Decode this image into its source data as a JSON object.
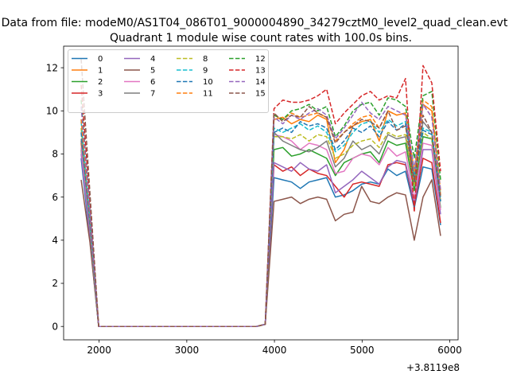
{
  "chart_data": {
    "type": "line",
    "suptitle": "Data from file: modeM0/AS1T04_086T01_9000004890_34279cztM0_level2_quad_clean.evt",
    "title": "Quadrant 1 module wise count rates with 100.0s bins.",
    "xlabel": "",
    "ylabel": "",
    "x_offset_label": "+3.8119e8",
    "xlim": [
      1595,
      6095
    ],
    "ylim": [
      -0.62,
      13.0
    ],
    "x_ticks": [
      2000,
      3000,
      4000,
      5000,
      6000
    ],
    "x_tick_labels": [
      "2000",
      "3000",
      "4000",
      "5000",
      "6000"
    ],
    "y_ticks": [
      0,
      2,
      4,
      6,
      8,
      10,
      12
    ],
    "y_tick_labels": [
      "0",
      "2",
      "4",
      "6",
      "8",
      "10",
      "12"
    ],
    "grid": false,
    "legend": {
      "placement": "top-left",
      "columns": 4
    },
    "x": [
      1795,
      1895,
      1995,
      2095,
      2195,
      2295,
      2395,
      2495,
      2595,
      2695,
      2795,
      2895,
      2995,
      3095,
      3195,
      3295,
      3395,
      3495,
      3595,
      3695,
      3795,
      3895,
      3995,
      4095,
      4195,
      4295,
      4395,
      4495,
      4595,
      4695,
      4795,
      4895,
      4995,
      5095,
      5195,
      5295,
      5395,
      5495,
      5595,
      5695,
      5795,
      5895
    ],
    "series": [
      {
        "name": "0",
        "color": "#1f77b4",
        "dash": "solid",
        "values": [
          7.8,
          4.0,
          0,
          0,
          0,
          0,
          0,
          0,
          0,
          0,
          0,
          0,
          0,
          0,
          0,
          0,
          0,
          0,
          0,
          0,
          0,
          0.1,
          6.9,
          6.8,
          6.7,
          6.4,
          6.7,
          6.8,
          6.9,
          6.0,
          6.1,
          6.3,
          6.6,
          6.7,
          6.6,
          7.3,
          7.0,
          7.2,
          5.5,
          7.4,
          7.3,
          4.7
        ]
      },
      {
        "name": "1",
        "color": "#ff7f0e",
        "dash": "solid",
        "values": [
          8.5,
          4.6,
          0,
          0,
          0,
          0,
          0,
          0,
          0,
          0,
          0,
          0,
          0,
          0,
          0,
          0,
          0,
          0,
          0,
          0,
          0,
          0.1,
          9.6,
          9.7,
          9.4,
          9.6,
          9.5,
          9.8,
          9.6,
          7.6,
          8.2,
          9.3,
          9.5,
          9.6,
          8.6,
          10.0,
          9.8,
          9.9,
          6.9,
          10.3,
          10.0,
          6.1
        ]
      },
      {
        "name": "2",
        "color": "#2ca02c",
        "dash": "solid",
        "values": [
          8.2,
          4.3,
          0,
          0,
          0,
          0,
          0,
          0,
          0,
          0,
          0,
          0,
          0,
          0,
          0,
          0,
          0,
          0,
          0,
          0,
          0,
          0.1,
          8.2,
          8.3,
          7.9,
          8.0,
          8.2,
          8.0,
          7.8,
          7.0,
          7.6,
          7.8,
          8.0,
          8.1,
          7.6,
          8.6,
          8.4,
          8.5,
          6.3,
          8.8,
          8.7,
          5.5
        ]
      },
      {
        "name": "3",
        "color": "#d62728",
        "dash": "solid",
        "values": [
          8.6,
          4.4,
          0,
          0,
          0,
          0,
          0,
          0,
          0,
          0,
          0,
          0,
          0,
          0,
          0,
          0,
          0,
          0,
          0,
          0,
          0,
          0.1,
          7.5,
          7.2,
          7.4,
          7.0,
          7.3,
          7.1,
          7.0,
          6.5,
          6.0,
          6.6,
          6.7,
          6.6,
          6.5,
          7.5,
          7.6,
          7.5,
          5.6,
          7.8,
          7.6,
          4.8
        ]
      },
      {
        "name": "4",
        "color": "#9467bd",
        "dash": "solid",
        "values": [
          8.0,
          4.2,
          0,
          0,
          0,
          0,
          0,
          0,
          0,
          0,
          0,
          0,
          0,
          0,
          0,
          0,
          0,
          0,
          0,
          0,
          0,
          0.1,
          7.6,
          7.4,
          7.2,
          7.6,
          7.3,
          7.2,
          7.5,
          6.2,
          6.5,
          6.8,
          7.2,
          6.9,
          6.6,
          7.4,
          7.7,
          7.6,
          5.7,
          8.2,
          8.2,
          5.2
        ]
      },
      {
        "name": "5",
        "color": "#8c564b",
        "dash": "solid",
        "values": [
          6.8,
          3.9,
          0,
          0,
          0,
          0,
          0,
          0,
          0,
          0,
          0,
          0,
          0,
          0,
          0,
          0,
          0,
          0,
          0,
          0,
          0,
          0.1,
          5.8,
          5.9,
          6.0,
          5.7,
          5.9,
          6.0,
          5.9,
          4.9,
          5.2,
          5.3,
          6.5,
          5.8,
          5.7,
          6.0,
          6.2,
          6.1,
          4.0,
          6.0,
          6.8,
          4.2
        ]
      },
      {
        "name": "6",
        "color": "#e377c2",
        "dash": "solid",
        "values": [
          8.3,
          4.5,
          0,
          0,
          0,
          0,
          0,
          0,
          0,
          0,
          0,
          0,
          0,
          0,
          0,
          0,
          0,
          0,
          0,
          0,
          0,
          0.1,
          8.9,
          8.8,
          8.6,
          8.2,
          8.5,
          8.4,
          8.2,
          7.1,
          7.2,
          7.8,
          8.0,
          7.9,
          7.5,
          8.3,
          7.9,
          8.1,
          5.9,
          8.5,
          8.4,
          5.4
        ]
      },
      {
        "name": "7",
        "color": "#7f7f7f",
        "dash": "solid",
        "values": [
          8.7,
          4.6,
          0,
          0,
          0,
          0,
          0,
          0,
          0,
          0,
          0,
          0,
          0,
          0,
          0,
          0,
          0,
          0,
          0,
          0,
          0,
          0.1,
          9.0,
          8.6,
          8.4,
          8.2,
          8.1,
          8.3,
          8.6,
          7.4,
          7.8,
          8.6,
          8.2,
          8.4,
          8.0,
          8.9,
          8.7,
          8.8,
          6.6,
          9.5,
          9.0,
          5.8
        ]
      },
      {
        "name": "8",
        "color": "#bcbd22",
        "dash": "dashed",
        "values": [
          9.2,
          4.9,
          0,
          0,
          0,
          0,
          0,
          0,
          0,
          0,
          0,
          0,
          0,
          0,
          0,
          0,
          0,
          0,
          0,
          0,
          0,
          0.1,
          8.8,
          8.8,
          8.7,
          8.9,
          8.6,
          8.9,
          8.8,
          7.8,
          8.0,
          8.4,
          8.6,
          8.7,
          8.3,
          9.0,
          8.8,
          8.9,
          6.6,
          9.0,
          8.7,
          5.9
        ]
      },
      {
        "name": "9",
        "color": "#17becf",
        "dash": "dashed",
        "values": [
          9.5,
          5.0,
          0,
          0,
          0,
          0,
          0,
          0,
          0,
          0,
          0,
          0,
          0,
          0,
          0,
          0,
          0,
          0,
          0,
          0,
          0,
          0.1,
          9.2,
          9.0,
          9.2,
          9.4,
          9.1,
          9.3,
          9.0,
          8.1,
          8.4,
          9.0,
          9.4,
          9.5,
          9.0,
          9.6,
          9.3,
          9.5,
          7.0,
          9.2,
          9.0,
          6.0
        ]
      },
      {
        "name": "10",
        "color": "#1f77b4",
        "dash": "dashed",
        "values": [
          9.0,
          4.8,
          0,
          0,
          0,
          0,
          0,
          0,
          0,
          0,
          0,
          0,
          0,
          0,
          0,
          0,
          0,
          0,
          0,
          0,
          0,
          0.1,
          9.0,
          9.2,
          9.0,
          9.5,
          9.3,
          9.4,
          9.2,
          8.2,
          8.6,
          9.2,
          9.0,
          9.3,
          8.8,
          9.5,
          9.1,
          9.4,
          6.8,
          9.1,
          8.9,
          5.8
        ]
      },
      {
        "name": "11",
        "color": "#ff7f0e",
        "dash": "dashed",
        "values": [
          9.6,
          5.1,
          0,
          0,
          0,
          0,
          0,
          0,
          0,
          0,
          0,
          0,
          0,
          0,
          0,
          0,
          0,
          0,
          0,
          0,
          0,
          0.1,
          9.8,
          9.6,
          9.9,
          9.7,
          9.8,
          9.9,
          9.7,
          8.6,
          9.0,
          9.4,
          9.7,
          9.8,
          9.2,
          10.0,
          9.8,
          9.9,
          7.2,
          10.5,
          10.2,
          6.3
        ]
      },
      {
        "name": "12",
        "color": "#2ca02c",
        "dash": "dashed",
        "values": [
          10.5,
          5.4,
          0,
          0,
          0,
          0,
          0,
          0,
          0,
          0,
          0,
          0,
          0,
          0,
          0,
          0,
          0,
          0,
          0,
          0,
          0,
          0.1,
          9.8,
          9.6,
          10.0,
          10.1,
          10.3,
          10.0,
          10.2,
          8.8,
          9.3,
          10.0,
          10.3,
          10.4,
          9.8,
          10.6,
          10.5,
          10.2,
          7.8,
          10.7,
          10.9,
          6.8
        ]
      },
      {
        "name": "13",
        "color": "#d62728",
        "dash": "dashed",
        "values": [
          11.2,
          5.8,
          0,
          0,
          0,
          0,
          0,
          0,
          0,
          0,
          0,
          0,
          0,
          0,
          0,
          0,
          0,
          0,
          0,
          0,
          0,
          0.1,
          10.1,
          10.5,
          10.4,
          10.4,
          10.5,
          10.7,
          11.0,
          9.4,
          9.9,
          10.3,
          10.7,
          10.9,
          10.5,
          10.7,
          10.6,
          11.5,
          5.3,
          12.1,
          11.3,
          7.2
        ]
      },
      {
        "name": "14",
        "color": "#9467bd",
        "dash": "dashed",
        "values": [
          10.2,
          5.3,
          0,
          0,
          0,
          0,
          0,
          0,
          0,
          0,
          0,
          0,
          0,
          0,
          0,
          0,
          0,
          0,
          0,
          0,
          0,
          0.1,
          9.7,
          9.4,
          9.8,
          9.6,
          9.9,
          10.1,
          9.8,
          8.7,
          9.2,
          9.8,
          10.4,
          9.9,
          9.6,
          10.2,
          10.0,
          9.8,
          7.3,
          10.3,
          9.7,
          6.3
        ]
      },
      {
        "name": "15",
        "color": "#8c564b",
        "dash": "dashed",
        "values": [
          12.4,
          6.2,
          0,
          0,
          0,
          0,
          0,
          0,
          0,
          0,
          0,
          0,
          0,
          0,
          0,
          0,
          0,
          0,
          0,
          0,
          0,
          0.1,
          9.9,
          9.5,
          9.8,
          9.7,
          10.2,
          9.9,
          9.7,
          8.5,
          9.0,
          9.3,
          9.6,
          9.5,
          9.2,
          10.0,
          9.1,
          9.3,
          6.7,
          9.8,
          9.0,
          6.0
        ]
      }
    ]
  }
}
